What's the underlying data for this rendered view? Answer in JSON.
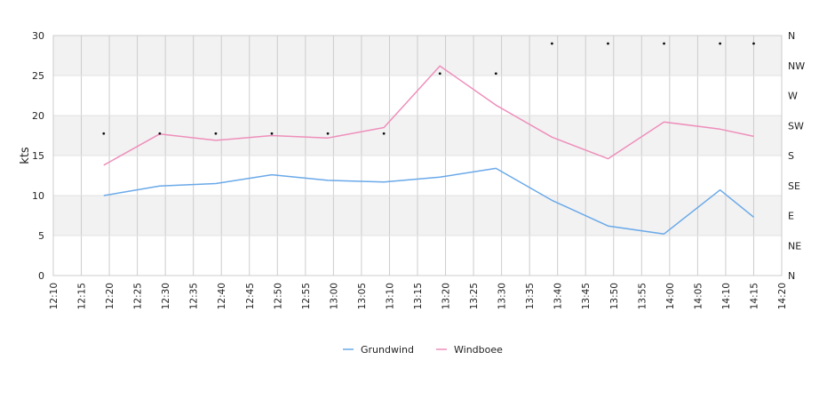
{
  "chart_data": {
    "type": "line",
    "ylabel": "kts",
    "ylim": [
      0,
      30
    ],
    "y_ticks": [
      "0",
      "5",
      "10",
      "15",
      "20",
      "25",
      "30"
    ],
    "x_ticks": [
      "12:10",
      "12:15",
      "12:20",
      "12:25",
      "12:30",
      "12:35",
      "12:40",
      "12:45",
      "12:50",
      "12:55",
      "13:00",
      "13:05",
      "13:10",
      "13:15",
      "13:20",
      "13:25",
      "13:30",
      "13:35",
      "13:40",
      "13:45",
      "13:50",
      "13:55",
      "14:00",
      "14:05",
      "14:10",
      "14:15",
      "14:20"
    ],
    "xlim": [
      "12:10",
      "14:20"
    ],
    "direction_ticks": [
      "N",
      "NE",
      "E",
      "SE",
      "S",
      "SW",
      "W",
      "NW",
      "N"
    ],
    "grid": true,
    "legend_position": "bottom-center",
    "series": [
      {
        "name": "Grundwind",
        "color": "#6aa9e9",
        "x": [
          "12:19",
          "12:29",
          "12:39",
          "12:49",
          "12:59",
          "13:09",
          "13:19",
          "13:29",
          "13:39",
          "13:49",
          "13:59",
          "14:09",
          "14:15"
        ],
        "values": [
          10.0,
          11.2,
          11.5,
          12.6,
          11.9,
          11.7,
          12.3,
          13.4,
          9.4,
          6.2,
          5.2,
          10.7,
          7.3
        ]
      },
      {
        "name": "Windboee",
        "color": "#ee8fbb",
        "x": [
          "12:19",
          "12:29",
          "12:39",
          "12:49",
          "12:59",
          "13:09",
          "13:19",
          "13:29",
          "13:39",
          "13:49",
          "13:59",
          "14:09",
          "14:15"
        ],
        "values": [
          13.8,
          17.7,
          16.9,
          17.5,
          17.2,
          18.5,
          26.2,
          21.3,
          17.3,
          14.6,
          19.2,
          18.3,
          17.4
        ]
      }
    ],
    "direction_series": {
      "x": [
        "12:19",
        "12:29",
        "12:39",
        "12:49",
        "12:59",
        "13:09",
        "13:19",
        "13:29",
        "13:39",
        "13:49",
        "13:59",
        "14:09",
        "14:15"
      ],
      "values": [
        "SW",
        "SW",
        "SW",
        "SW",
        "SW",
        "SW",
        "NW",
        "NW",
        "N",
        "N",
        "N",
        "N",
        "N"
      ]
    }
  }
}
